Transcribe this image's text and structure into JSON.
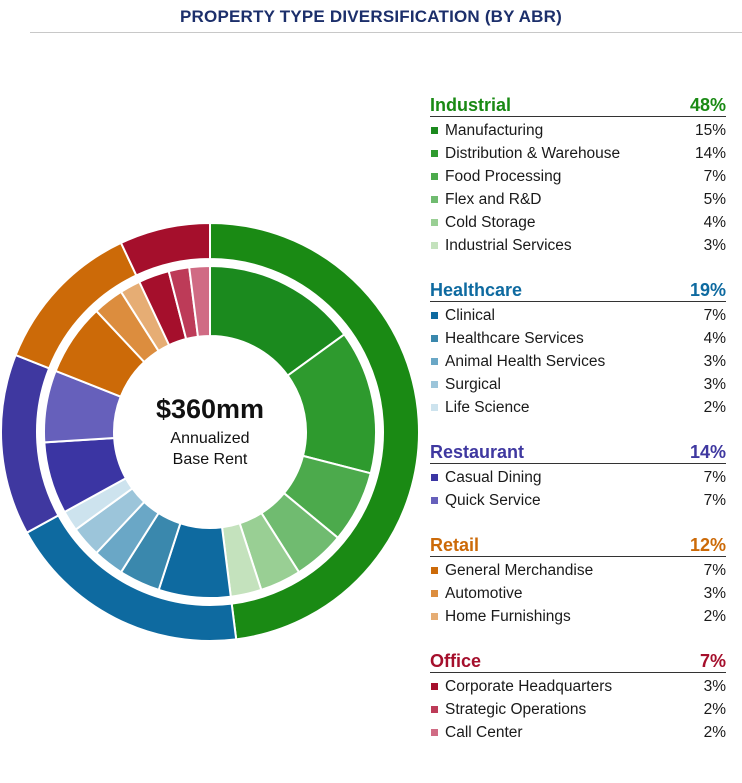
{
  "header": {
    "title": "PROPERTY TYPE DIVERSIFICATION (BY ABR)"
  },
  "center": {
    "value": "$360mm",
    "line1": "Annualized",
    "line2": "Base Rent"
  },
  "chart_data": {
    "type": "pie",
    "subtype": "nested-donut",
    "title": "PROPERTY TYPE DIVERSIFICATION (BY ABR)",
    "total_label": "$360mm Annualized Base Rent",
    "unit": "% of ABR",
    "groups": [
      {
        "name": "Industrial",
        "value": 48,
        "label": "48%",
        "color": "#1a8a14",
        "children": [
          {
            "name": "Manufacturing",
            "value": 15,
            "label": "15%",
            "color": "#1b8a1e"
          },
          {
            "name": "Distribution & Warehouse",
            "value": 14,
            "label": "14%",
            "color": "#2e9a2e"
          },
          {
            "name": "Food Processing",
            "value": 7,
            "label": "7%",
            "color": "#4caa4c"
          },
          {
            "name": "Flex and R&D",
            "value": 5,
            "label": "5%",
            "color": "#70bb70"
          },
          {
            "name": "Cold Storage",
            "value": 4,
            "label": "4%",
            "color": "#99cf94"
          },
          {
            "name": "Industrial Services",
            "value": 3,
            "label": "3%",
            "color": "#c4e2bd"
          }
        ]
      },
      {
        "name": "Healthcare",
        "value": 19,
        "label": "19%",
        "color": "#0e6aa0",
        "children": [
          {
            "name": "Clinical",
            "value": 7,
            "label": "7%",
            "color": "#0e6aa0"
          },
          {
            "name": "Healthcare Services",
            "value": 4,
            "label": "4%",
            "color": "#3a88ad"
          },
          {
            "name": "Animal Health Services",
            "value": 3,
            "label": "3%",
            "color": "#6aa7c6"
          },
          {
            "name": "Surgical",
            "value": 3,
            "label": "3%",
            "color": "#9cc5da"
          },
          {
            "name": "Life Science",
            "value": 2,
            "label": "2%",
            "color": "#cde3ee"
          }
        ]
      },
      {
        "name": "Restaurant",
        "value": 14,
        "label": "14%",
        "color": "#3f38a0",
        "children": [
          {
            "name": "Casual Dining",
            "value": 7,
            "label": "7%",
            "color": "#3b35a3"
          },
          {
            "name": "Quick Service",
            "value": 7,
            "label": "7%",
            "color": "#6660bb"
          }
        ]
      },
      {
        "name": "Retail",
        "value": 12,
        "label": "12%",
        "color": "#cc6a08",
        "children": [
          {
            "name": "General Merchandise",
            "value": 7,
            "label": "7%",
            "color": "#cc6a08"
          },
          {
            "name": "Automotive",
            "value": 3,
            "label": "3%",
            "color": "#dc8d3e"
          },
          {
            "name": "Home Furnishings",
            "value": 2,
            "label": "2%",
            "color": "#e6ad74"
          }
        ]
      },
      {
        "name": "Office",
        "value": 7,
        "label": "7%",
        "color": "#a50f2c",
        "children": [
          {
            "name": "Corporate Headquarters",
            "value": 3,
            "label": "3%",
            "color": "#a50f2c"
          },
          {
            "name": "Strategic Operations",
            "value": 2,
            "label": "2%",
            "color": "#bd3b58"
          },
          {
            "name": "Call Center",
            "value": 2,
            "label": "2%",
            "color": "#d06b84"
          }
        ]
      }
    ]
  }
}
